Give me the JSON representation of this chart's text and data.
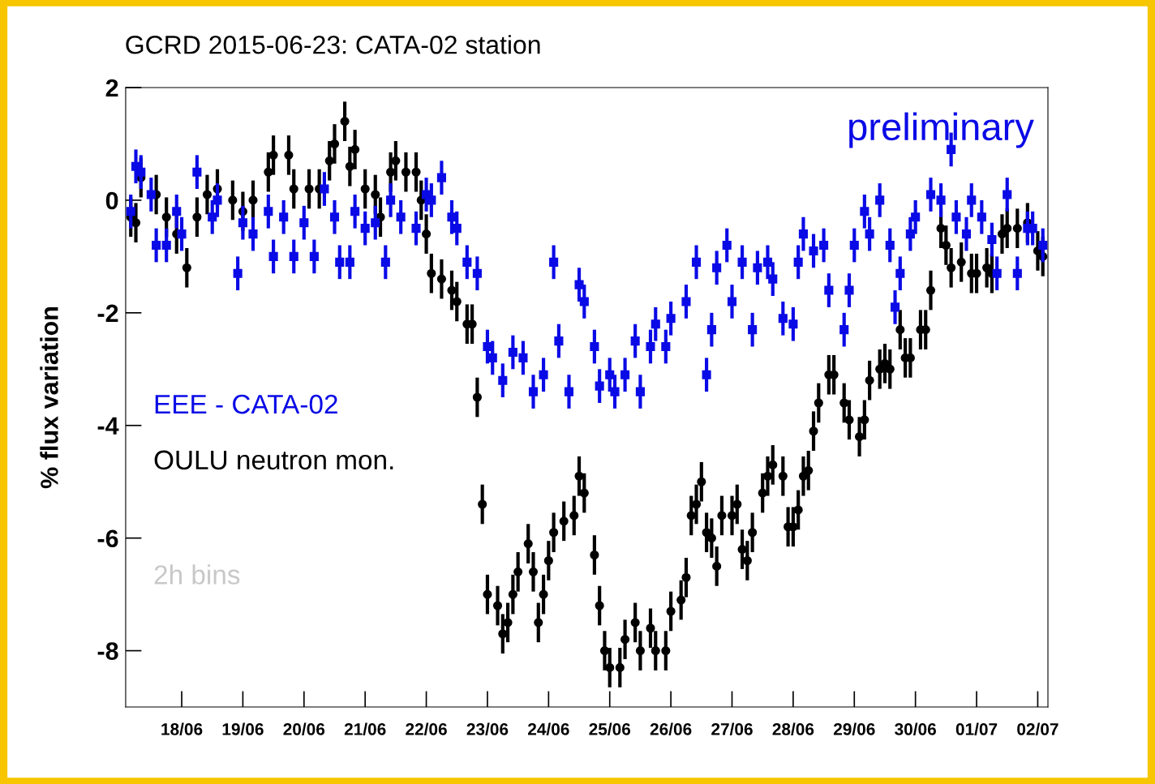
{
  "chart_data": {
    "type": "scatter",
    "title": "GCRD 2015-06-23: CATA-02 station",
    "ylabel": "% flux variation",
    "annotations": [
      "preliminary",
      "2h bins"
    ],
    "legend": "left",
    "xlim": [
      "2015-06-17T02:00",
      "2015-07-02T04:00"
    ],
    "xticks": [
      {
        "value": "2015-06-18",
        "label": "18/06"
      },
      {
        "value": "2015-06-19",
        "label": "19/06"
      },
      {
        "value": "2015-06-20",
        "label": "20/06"
      },
      {
        "value": "2015-06-21",
        "label": "21/06"
      },
      {
        "value": "2015-06-22",
        "label": "22/06"
      },
      {
        "value": "2015-06-23",
        "label": "23/06"
      },
      {
        "value": "2015-06-24",
        "label": "24/06"
      },
      {
        "value": "2015-06-25",
        "label": "25/06"
      },
      {
        "value": "2015-06-26",
        "label": "26/06"
      },
      {
        "value": "2015-06-27",
        "label": "27/06"
      },
      {
        "value": "2015-06-28",
        "label": "28/06"
      },
      {
        "value": "2015-06-29",
        "label": "29/06"
      },
      {
        "value": "2015-06-30",
        "label": "30/06"
      },
      {
        "value": "2015-07-01",
        "label": "01/07"
      },
      {
        "value": "2015-07-02",
        "label": "02/07"
      }
    ],
    "ylim": [
      -9,
      2
    ],
    "yticks": [
      -8,
      -6,
      -4,
      -2,
      0,
      2
    ],
    "series": [
      {
        "name": "EEE - CATA-02",
        "color": "#0a0ae6",
        "marker": "square",
        "x": [
          "2015-06-17T04:00",
          "2015-06-17T06:00",
          "2015-06-17T08:00",
          "2015-06-17T12:00",
          "2015-06-17T14:00",
          "2015-06-17T18:00",
          "2015-06-17T22:00",
          "2015-06-18T00:00",
          "2015-06-18T06:00",
          "2015-06-18T12:00",
          "2015-06-18T14:00",
          "2015-06-18T22:00",
          "2015-06-19T00:00",
          "2015-06-19T04:00",
          "2015-06-19T10:00",
          "2015-06-19T12:00",
          "2015-06-19T16:00",
          "2015-06-19T20:00",
          "2015-06-20T00:00",
          "2015-06-20T04:00",
          "2015-06-20T08:00",
          "2015-06-20T12:00",
          "2015-06-20T14:00",
          "2015-06-20T18:00",
          "2015-06-20T20:00",
          "2015-06-21T00:00",
          "2015-06-21T04:00",
          "2015-06-21T08:00",
          "2015-06-21T10:00",
          "2015-06-21T14:00",
          "2015-06-21T20:00",
          "2015-06-22T00:00",
          "2015-06-22T02:00",
          "2015-06-22T06:00",
          "2015-06-22T10:00",
          "2015-06-22T12:00",
          "2015-06-22T16:00",
          "2015-06-22T20:00",
          "2015-06-23T00:00",
          "2015-06-23T02:00",
          "2015-06-23T06:00",
          "2015-06-23T10:00",
          "2015-06-23T14:00",
          "2015-06-23T18:00",
          "2015-06-23T22:00",
          "2015-06-24T02:00",
          "2015-06-24T04:00",
          "2015-06-24T08:00",
          "2015-06-24T12:00",
          "2015-06-24T14:00",
          "2015-06-24T18:00",
          "2015-06-24T20:00",
          "2015-06-25T00:00",
          "2015-06-25T02:00",
          "2015-06-25T06:00",
          "2015-06-25T10:00",
          "2015-06-25T12:00",
          "2015-06-25T16:00",
          "2015-06-25T18:00",
          "2015-06-25T22:00",
          "2015-06-26T00:00",
          "2015-06-26T06:00",
          "2015-06-26T10:00",
          "2015-06-26T14:00",
          "2015-06-26T16:00",
          "2015-06-26T18:00",
          "2015-06-26T22:00",
          "2015-06-27T00:00",
          "2015-06-27T04:00",
          "2015-06-27T08:00",
          "2015-06-27T10:00",
          "2015-06-27T14:00",
          "2015-06-27T16:00",
          "2015-06-27T20:00",
          "2015-06-28T00:00",
          "2015-06-28T02:00",
          "2015-06-28T04:00",
          "2015-06-28T08:00",
          "2015-06-28T12:00",
          "2015-06-28T14:00",
          "2015-06-28T20:00",
          "2015-06-28T22:00",
          "2015-06-29T00:00",
          "2015-06-29T04:00",
          "2015-06-29T06:00",
          "2015-06-29T10:00",
          "2015-06-29T14:00",
          "2015-06-29T16:00",
          "2015-06-29T18:00",
          "2015-06-29T22:00",
          "2015-06-30T00:00",
          "2015-06-30T06:00",
          "2015-06-30T10:00",
          "2015-06-30T14:00",
          "2015-06-30T16:00",
          "2015-06-30T20:00",
          "2015-06-30T22:00",
          "2015-07-01T02:00",
          "2015-07-01T06:00",
          "2015-07-01T08:00",
          "2015-07-01T12:00",
          "2015-07-01T16:00",
          "2015-07-01T20:00",
          "2015-07-01T22:00",
          "2015-07-02T02:00"
        ],
        "values": [
          -0.2,
          0.6,
          0.5,
          0.1,
          -0.8,
          -0.8,
          -0.2,
          -0.6,
          0.5,
          -0.3,
          0.0,
          -1.3,
          -0.4,
          -0.6,
          -0.2,
          -1.0,
          -0.3,
          -1.0,
          -0.4,
          -1.0,
          0.2,
          -0.3,
          -1.1,
          -1.1,
          -0.2,
          -0.5,
          -0.4,
          -1.1,
          0.0,
          -0.3,
          -0.5,
          0.1,
          0.0,
          0.4,
          -0.3,
          -0.5,
          -1.1,
          -1.3,
          -2.6,
          -2.8,
          -3.2,
          -2.7,
          -2.8,
          -3.4,
          -3.1,
          -1.1,
          -2.5,
          -3.4,
          -1.5,
          -1.8,
          -2.6,
          -3.3,
          -3.1,
          -3.4,
          -3.1,
          -2.5,
          -3.4,
          -2.6,
          -2.2,
          -2.6,
          -2.1,
          -1.8,
          -1.1,
          -3.1,
          -2.3,
          -1.2,
          -0.8,
          -1.8,
          -1.1,
          -2.3,
          -1.2,
          -1.1,
          -1.4,
          -2.1,
          -2.2,
          -1.1,
          -0.6,
          -0.9,
          -0.8,
          -1.6,
          -2.3,
          -1.6,
          -0.8,
          -0.2,
          -0.6,
          0.0,
          -0.8,
          -1.9,
          -1.3,
          -0.6,
          -0.3,
          0.1,
          0.0,
          0.9,
          -0.3,
          -0.6,
          0.0,
          -0.3,
          -0.7,
          -1.3,
          0.1,
          -1.3,
          -0.5,
          -0.5,
          -0.8
        ],
        "errors": [
          0.3,
          0.3,
          0.3,
          0.3,
          0.3,
          0.3,
          0.3,
          0.3,
          0.3,
          0.3,
          0.3,
          0.3,
          0.3,
          0.3,
          0.3,
          0.3,
          0.3,
          0.3,
          0.3,
          0.3,
          0.3,
          0.3,
          0.3,
          0.3,
          0.3,
          0.3,
          0.3,
          0.3,
          0.3,
          0.3,
          0.3,
          0.3,
          0.3,
          0.3,
          0.3,
          0.3,
          0.3,
          0.3,
          0.3,
          0.3,
          0.3,
          0.3,
          0.3,
          0.3,
          0.3,
          0.3,
          0.3,
          0.3,
          0.3,
          0.3,
          0.3,
          0.3,
          0.3,
          0.3,
          0.3,
          0.3,
          0.3,
          0.3,
          0.3,
          0.3,
          0.3,
          0.3,
          0.3,
          0.3,
          0.3,
          0.3,
          0.3,
          0.3,
          0.3,
          0.3,
          0.3,
          0.3,
          0.3,
          0.3,
          0.3,
          0.3,
          0.3,
          0.3,
          0.3,
          0.3,
          0.3,
          0.3,
          0.3,
          0.3,
          0.3,
          0.3,
          0.3,
          0.3,
          0.3,
          0.3,
          0.3,
          0.3,
          0.3,
          0.3,
          0.3,
          0.3,
          0.3,
          0.3,
          0.3,
          0.3,
          0.3,
          0.3,
          0.3,
          0.3,
          0.3
        ]
      },
      {
        "name": "OULU neutron mon.",
        "color": "#000000",
        "marker": "circle",
        "x": [
          "2015-06-17T04:00",
          "2015-06-17T06:00",
          "2015-06-17T08:00",
          "2015-06-17T14:00",
          "2015-06-17T18:00",
          "2015-06-17T22:00",
          "2015-06-18T02:00",
          "2015-06-18T06:00",
          "2015-06-18T10:00",
          "2015-06-18T14:00",
          "2015-06-18T20:00",
          "2015-06-19T00:00",
          "2015-06-19T04:00",
          "2015-06-19T10:00",
          "2015-06-19T12:00",
          "2015-06-19T18:00",
          "2015-06-19T20:00",
          "2015-06-20T02:00",
          "2015-06-20T06:00",
          "2015-06-20T10:00",
          "2015-06-20T12:00",
          "2015-06-20T16:00",
          "2015-06-20T18:00",
          "2015-06-20T20:00",
          "2015-06-21T00:00",
          "2015-06-21T04:00",
          "2015-06-21T06:00",
          "2015-06-21T10:00",
          "2015-06-21T12:00",
          "2015-06-21T16:00",
          "2015-06-21T20:00",
          "2015-06-21T22:00",
          "2015-06-22T00:00",
          "2015-06-22T02:00",
          "2015-06-22T06:00",
          "2015-06-22T10:00",
          "2015-06-22T12:00",
          "2015-06-22T16:00",
          "2015-06-22T18:00",
          "2015-06-22T20:00",
          "2015-06-22T22:00",
          "2015-06-23T00:00",
          "2015-06-23T04:00",
          "2015-06-23T06:00",
          "2015-06-23T08:00",
          "2015-06-23T10:00",
          "2015-06-23T12:00",
          "2015-06-23T16:00",
          "2015-06-23T18:00",
          "2015-06-23T20:00",
          "2015-06-23T22:00",
          "2015-06-24T00:00",
          "2015-06-24T02:00",
          "2015-06-24T06:00",
          "2015-06-24T10:00",
          "2015-06-24T12:00",
          "2015-06-24T14:00",
          "2015-06-24T18:00",
          "2015-06-24T20:00",
          "2015-06-24T22:00",
          "2015-06-25T00:00",
          "2015-06-25T04:00",
          "2015-06-25T06:00",
          "2015-06-25T10:00",
          "2015-06-25T12:00",
          "2015-06-25T16:00",
          "2015-06-25T18:00",
          "2015-06-25T22:00",
          "2015-06-26T00:00",
          "2015-06-26T04:00",
          "2015-06-26T06:00",
          "2015-06-26T08:00",
          "2015-06-26T10:00",
          "2015-06-26T12:00",
          "2015-06-26T14:00",
          "2015-06-26T16:00",
          "2015-06-26T18:00",
          "2015-06-26T20:00",
          "2015-06-27T00:00",
          "2015-06-27T02:00",
          "2015-06-27T04:00",
          "2015-06-27T06:00",
          "2015-06-27T08:00",
          "2015-06-27T12:00",
          "2015-06-27T14:00",
          "2015-06-27T16:00",
          "2015-06-27T20:00",
          "2015-06-27T22:00",
          "2015-06-28T00:00",
          "2015-06-28T02:00",
          "2015-06-28T04:00",
          "2015-06-28T06:00",
          "2015-06-28T08:00",
          "2015-06-28T10:00",
          "2015-06-28T14:00",
          "2015-06-28T16:00",
          "2015-06-28T20:00",
          "2015-06-28T22:00",
          "2015-06-29T02:00",
          "2015-06-29T04:00",
          "2015-06-29T06:00",
          "2015-06-29T10:00",
          "2015-06-29T12:00",
          "2015-06-29T14:00",
          "2015-06-29T18:00",
          "2015-06-29T20:00",
          "2015-06-29T22:00",
          "2015-06-30T02:00",
          "2015-06-30T04:00",
          "2015-06-30T06:00",
          "2015-06-30T10:00",
          "2015-06-30T12:00",
          "2015-06-30T14:00",
          "2015-06-30T18:00",
          "2015-06-30T22:00",
          "2015-07-01T00:00",
          "2015-07-01T04:00",
          "2015-07-01T06:00",
          "2015-07-01T10:00",
          "2015-07-01T12:00",
          "2015-07-01T16:00",
          "2015-07-01T20:00",
          "2015-07-02T00:00",
          "2015-07-02T02:00"
        ],
        "values": [
          -0.3,
          -0.4,
          0.4,
          0.1,
          -0.3,
          -0.6,
          -1.2,
          -0.3,
          0.1,
          0.2,
          0.0,
          -0.2,
          0.0,
          0.5,
          0.8,
          0.8,
          0.2,
          0.2,
          0.2,
          0.7,
          1.0,
          1.4,
          0.6,
          0.9,
          0.2,
          0.1,
          -0.3,
          0.5,
          0.7,
          0.5,
          0.5,
          0.0,
          -0.6,
          -1.3,
          -1.4,
          -1.6,
          -1.8,
          -2.2,
          -2.2,
          -3.5,
          -5.4,
          -7.0,
          -7.2,
          -7.7,
          -7.5,
          -7.0,
          -6.6,
          -6.1,
          -6.6,
          -7.5,
          -7.0,
          -6.4,
          -5.9,
          -5.7,
          -5.6,
          -4.9,
          -5.2,
          -6.3,
          -7.2,
          -8.0,
          -8.3,
          -8.3,
          -7.8,
          -7.5,
          -8.0,
          -7.6,
          -8.0,
          -8.0,
          -7.3,
          -7.1,
          -6.7,
          -5.6,
          -5.4,
          -5.0,
          -5.9,
          -6.0,
          -6.5,
          -5.6,
          -5.6,
          -5.4,
          -6.2,
          -6.4,
          -5.9,
          -5.2,
          -4.9,
          -4.7,
          -4.9,
          -5.8,
          -5.8,
          -5.5,
          -4.9,
          -4.8,
          -4.1,
          -3.6,
          -3.1,
          -3.1,
          -3.6,
          -3.9,
          -4.2,
          -3.9,
          -3.2,
          -3.0,
          -2.9,
          -3.0,
          -2.3,
          -2.8,
          -2.8,
          -2.3,
          -2.3,
          -1.6,
          -0.5,
          -0.8,
          -1.2,
          -1.1,
          -1.3,
          -1.3,
          -1.2,
          -1.3,
          -0.6,
          -0.5,
          -0.5,
          -0.4,
          -0.9,
          -1.0
        ],
        "errors": [
          0.35,
          0.35,
          0.35,
          0.35,
          0.35,
          0.35,
          0.35,
          0.35,
          0.35,
          0.35,
          0.35,
          0.35,
          0.35,
          0.35,
          0.35,
          0.35,
          0.35,
          0.35,
          0.35,
          0.35,
          0.35,
          0.35,
          0.35,
          0.35,
          0.35,
          0.35,
          0.35,
          0.35,
          0.35,
          0.35,
          0.35,
          0.35,
          0.35,
          0.35,
          0.35,
          0.35,
          0.35,
          0.35,
          0.35,
          0.35,
          0.35,
          0.35,
          0.35,
          0.35,
          0.35,
          0.35,
          0.35,
          0.35,
          0.35,
          0.35,
          0.35,
          0.35,
          0.35,
          0.35,
          0.35,
          0.35,
          0.35,
          0.35,
          0.35,
          0.35,
          0.35,
          0.35,
          0.35,
          0.35,
          0.35,
          0.35,
          0.35,
          0.35,
          0.35,
          0.35,
          0.35,
          0.35,
          0.35,
          0.35,
          0.35,
          0.35,
          0.35,
          0.35,
          0.35,
          0.35,
          0.35,
          0.35,
          0.35,
          0.35,
          0.35,
          0.35,
          0.35,
          0.35,
          0.35,
          0.35,
          0.35,
          0.35,
          0.35,
          0.35,
          0.35,
          0.35,
          0.35,
          0.35,
          0.35,
          0.35,
          0.35,
          0.35,
          0.35,
          0.35,
          0.35,
          0.35,
          0.35,
          0.35,
          0.35,
          0.35,
          0.35,
          0.35,
          0.35,
          0.35,
          0.35,
          0.35,
          0.35,
          0.35,
          0.35,
          0.35,
          0.35,
          0.35,
          0.35,
          0.35
        ]
      }
    ]
  }
}
